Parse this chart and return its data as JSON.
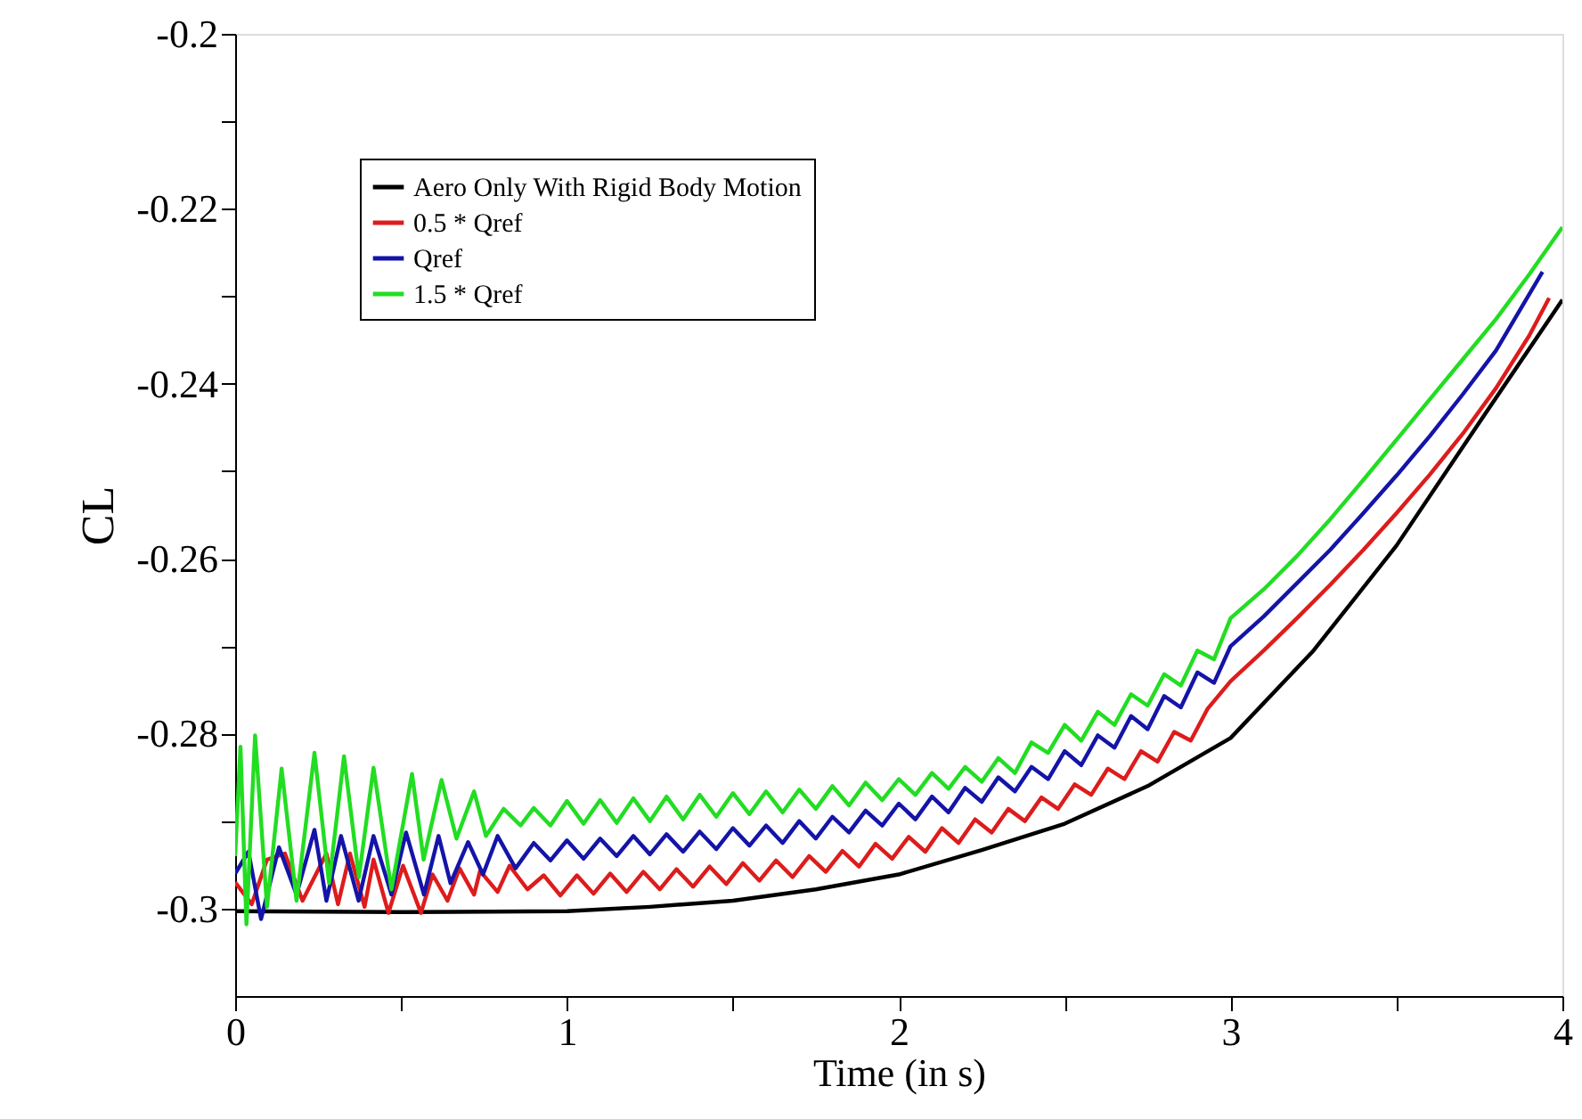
{
  "chart_data": {
    "type": "line",
    "xlabel": "Time (in s)",
    "ylabel": "CL",
    "xlim": [
      0,
      4
    ],
    "ylim": [
      -0.31,
      -0.2
    ],
    "xticks": [
      0,
      {
        "value": 0.5,
        "label": null
      },
      1,
      {
        "value": 1.5,
        "label": null
      },
      2,
      {
        "value": 2.5,
        "label": null
      },
      3,
      {
        "value": 3.5,
        "label": null
      },
      4
    ],
    "yticks": [
      -0.3,
      {
        "value": -0.29,
        "label": null
      },
      -0.28,
      {
        "value": -0.27,
        "label": null
      },
      -0.26,
      {
        "value": -0.25,
        "label": null
      },
      -0.24,
      {
        "value": -0.23,
        "label": null
      },
      -0.22,
      {
        "value": -0.21,
        "label": null
      },
      -0.2
    ],
    "grid": false,
    "legend": "top left",
    "marker": "none",
    "line_style": "solid",
    "series": [
      {
        "name": "Aero Only With Rigid Body Motion",
        "color": "#000000",
        "x": [
          0,
          0.5,
          1.0,
          1.25,
          1.5,
          1.75,
          2.0,
          2.25,
          2.5,
          2.75,
          3.0,
          3.25,
          3.5,
          3.75,
          4.0
        ],
        "values": [
          -0.3003,
          -0.3004,
          -0.3003,
          -0.2998,
          -0.2991,
          -0.2978,
          -0.2961,
          -0.2933,
          -0.2903,
          -0.286,
          -0.2805,
          -0.2705,
          -0.2585,
          -0.2444,
          -0.2304
        ]
      },
      {
        "name": "0.5 * Qref",
        "color": "#dd1c1c",
        "x": [
          0,
          0.05,
          0.096,
          0.15,
          0.203,
          0.275,
          0.31,
          0.346,
          0.39,
          0.417,
          0.462,
          0.506,
          0.56,
          0.595,
          0.64,
          0.676,
          0.72,
          0.738,
          0.791,
          0.827,
          0.881,
          0.93,
          0.98,
          1.03,
          1.08,
          1.13,
          1.18,
          1.23,
          1.28,
          1.33,
          1.38,
          1.43,
          1.48,
          1.53,
          1.58,
          1.63,
          1.68,
          1.73,
          1.78,
          1.83,
          1.88,
          1.93,
          1.98,
          2.03,
          2.08,
          2.13,
          2.18,
          2.23,
          2.28,
          2.33,
          2.38,
          2.43,
          2.48,
          2.53,
          2.58,
          2.63,
          2.68,
          2.73,
          2.78,
          2.83,
          2.88,
          2.93,
          3.0,
          3.1,
          3.2,
          3.3,
          3.4,
          3.5,
          3.6,
          3.7,
          3.8,
          3.9,
          3.96
        ],
        "values": [
          -0.297,
          -0.2995,
          -0.2944,
          -0.2937,
          -0.2991,
          -0.2937,
          -0.2995,
          -0.2937,
          -0.2998,
          -0.2944,
          -0.3005,
          -0.2951,
          -0.3005,
          -0.2961,
          -0.2991,
          -0.2954,
          -0.2984,
          -0.2957,
          -0.2981,
          -0.2951,
          -0.2978,
          -0.2962,
          -0.2985,
          -0.2962,
          -0.2983,
          -0.296,
          -0.2981,
          -0.2958,
          -0.2978,
          -0.2955,
          -0.2975,
          -0.2952,
          -0.2972,
          -0.2948,
          -0.2968,
          -0.2945,
          -0.2964,
          -0.294,
          -0.2958,
          -0.2934,
          -0.2952,
          -0.2926,
          -0.2943,
          -0.2918,
          -0.2935,
          -0.2908,
          -0.2925,
          -0.2898,
          -0.2913,
          -0.2886,
          -0.29,
          -0.2873,
          -0.2886,
          -0.2858,
          -0.287,
          -0.284,
          -0.2852,
          -0.282,
          -0.2832,
          -0.2798,
          -0.2808,
          -0.2772,
          -0.274,
          -0.2705,
          -0.2668,
          -0.263,
          -0.259,
          -0.2548,
          -0.2504,
          -0.2457,
          -0.2405,
          -0.2345,
          -0.2302
        ]
      },
      {
        "name": "Qref",
        "color": "#1414a8",
        "x": [
          0,
          0.04,
          0.078,
          0.132,
          0.185,
          0.239,
          0.275,
          0.319,
          0.372,
          0.417,
          0.471,
          0.515,
          0.569,
          0.613,
          0.649,
          0.702,
          0.747,
          0.791,
          0.845,
          0.9,
          0.95,
          1.0,
          1.05,
          1.1,
          1.15,
          1.2,
          1.25,
          1.3,
          1.35,
          1.4,
          1.45,
          1.5,
          1.55,
          1.6,
          1.65,
          1.7,
          1.75,
          1.8,
          1.85,
          1.9,
          1.95,
          2.0,
          2.05,
          2.1,
          2.15,
          2.2,
          2.25,
          2.3,
          2.35,
          2.4,
          2.45,
          2.5,
          2.55,
          2.6,
          2.65,
          2.7,
          2.75,
          2.8,
          2.85,
          2.9,
          2.95,
          3.0,
          3.1,
          3.2,
          3.3,
          3.4,
          3.5,
          3.6,
          3.7,
          3.8,
          3.94
        ],
        "values": [
          -0.296,
          -0.2935,
          -0.3012,
          -0.293,
          -0.2984,
          -0.291,
          -0.2991,
          -0.2917,
          -0.2991,
          -0.2917,
          -0.2984,
          -0.2913,
          -0.2984,
          -0.2917,
          -0.2971,
          -0.2924,
          -0.2961,
          -0.2917,
          -0.2954,
          -0.2925,
          -0.2945,
          -0.2922,
          -0.2943,
          -0.292,
          -0.294,
          -0.2917,
          -0.2938,
          -0.2915,
          -0.2935,
          -0.2912,
          -0.2932,
          -0.2908,
          -0.2928,
          -0.2905,
          -0.2925,
          -0.29,
          -0.292,
          -0.2895,
          -0.2913,
          -0.2888,
          -0.2905,
          -0.288,
          -0.2898,
          -0.2872,
          -0.289,
          -0.2862,
          -0.2878,
          -0.285,
          -0.2866,
          -0.2838,
          -0.2852,
          -0.282,
          -0.2836,
          -0.2802,
          -0.2816,
          -0.278,
          -0.2795,
          -0.2757,
          -0.277,
          -0.273,
          -0.2742,
          -0.27,
          -0.2666,
          -0.2628,
          -0.259,
          -0.2548,
          -0.2505,
          -0.246,
          -0.2412,
          -0.2362,
          -0.2272
        ]
      },
      {
        "name": "1.5 * Qref",
        "color": "#22dd22",
        "x": [
          0,
          0.016,
          0.034,
          0.06,
          0.096,
          0.14,
          0.185,
          0.239,
          0.283,
          0.328,
          0.373,
          0.417,
          0.471,
          0.533,
          0.568,
          0.622,
          0.667,
          0.72,
          0.756,
          0.809,
          0.86,
          0.9,
          0.95,
          1.0,
          1.05,
          1.1,
          1.15,
          1.2,
          1.25,
          1.3,
          1.35,
          1.4,
          1.45,
          1.5,
          1.55,
          1.6,
          1.65,
          1.7,
          1.75,
          1.8,
          1.85,
          1.9,
          1.95,
          2.0,
          2.05,
          2.1,
          2.15,
          2.2,
          2.25,
          2.3,
          2.35,
          2.4,
          2.45,
          2.5,
          2.55,
          2.6,
          2.65,
          2.7,
          2.75,
          2.8,
          2.85,
          2.9,
          2.95,
          3.0,
          3.1,
          3.2,
          3.3,
          3.4,
          3.5,
          3.6,
          3.7,
          3.8,
          3.9,
          4.0
        ],
        "values": [
          -0.294,
          -0.2815,
          -0.3018,
          -0.2802,
          -0.2998,
          -0.284,
          -0.2991,
          -0.2822,
          -0.2971,
          -0.2826,
          -0.2964,
          -0.2839,
          -0.2978,
          -0.2846,
          -0.2944,
          -0.2853,
          -0.292,
          -0.2866,
          -0.2917,
          -0.2886,
          -0.2905,
          -0.2885,
          -0.2905,
          -0.2877,
          -0.2903,
          -0.2876,
          -0.2902,
          -0.2874,
          -0.29,
          -0.2872,
          -0.2898,
          -0.287,
          -0.2895,
          -0.2868,
          -0.2892,
          -0.2866,
          -0.289,
          -0.2864,
          -0.2886,
          -0.286,
          -0.2882,
          -0.2856,
          -0.2876,
          -0.2852,
          -0.287,
          -0.2845,
          -0.2863,
          -0.2838,
          -0.2855,
          -0.2828,
          -0.2845,
          -0.281,
          -0.2822,
          -0.279,
          -0.2808,
          -0.2775,
          -0.279,
          -0.2755,
          -0.2768,
          -0.2732,
          -0.2745,
          -0.2705,
          -0.2715,
          -0.2668,
          -0.2635,
          -0.2597,
          -0.2555,
          -0.251,
          -0.2464,
          -0.2418,
          -0.2372,
          -0.2326,
          -0.2275,
          -0.2221
        ]
      }
    ]
  }
}
